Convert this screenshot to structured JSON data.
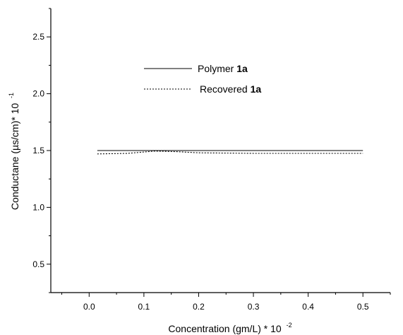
{
  "chart_data": {
    "type": "line",
    "x_axis": {
      "label": "Concentration (gm/L) * 10",
      "label_exponent": "-2",
      "range": [
        -0.07,
        0.55
      ],
      "ticks": [
        0.0,
        0.1,
        0.2,
        0.3,
        0.4,
        0.5
      ],
      "tick_labels": [
        "0.0",
        "0.1",
        "0.2",
        "0.3",
        "0.4",
        "0.5"
      ]
    },
    "y_axis": {
      "label": "Conductane (µs/cm)* 10",
      "label_exponent": "-1",
      "range": [
        0.25,
        2.75
      ],
      "ticks": [
        0.5,
        1.0,
        1.5,
        2.0,
        2.5
      ],
      "tick_labels": [
        "0.5",
        "1.0",
        "1.5",
        "2.0",
        "2.5"
      ]
    },
    "grid": false,
    "legend_position": "top-center",
    "series": [
      {
        "name_prefix": "Polymer ",
        "name_bold": "1a",
        "line_style": "solid",
        "x": [
          0.015,
          0.1,
          0.2,
          0.3,
          0.4,
          0.5
        ],
        "y": [
          1.5,
          1.5,
          1.5,
          1.5,
          1.5,
          1.5
        ]
      },
      {
        "name_prefix": "Recovered ",
        "name_bold": "1a",
        "line_style": "dotted",
        "x": [
          0.015,
          0.07,
          0.12,
          0.16,
          0.2,
          0.3,
          0.4,
          0.5
        ],
        "y": [
          1.47,
          1.475,
          1.495,
          1.49,
          1.48,
          1.475,
          1.475,
          1.475
        ]
      }
    ]
  }
}
